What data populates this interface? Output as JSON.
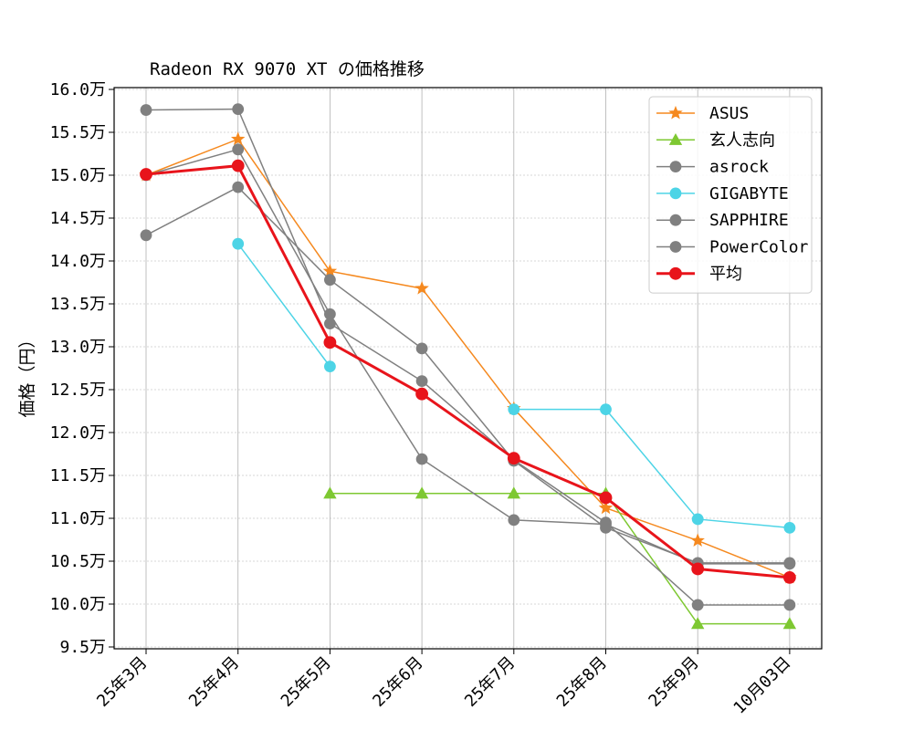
{
  "chart_data": {
    "type": "line",
    "title": "Radeon RX 9070 XT の価格推移",
    "ylabel": "価格（円）",
    "xlabel": "",
    "categories": [
      "25年3月",
      "25年4月",
      "25年5月",
      "25年6月",
      "25年7月",
      "25年8月",
      "25年9月",
      "10月03日"
    ],
    "ylim": [
      9.5,
      16.0
    ],
    "y_unit": "万",
    "y_ticks": [
      "9.5万",
      "10.0万",
      "10.5万",
      "11.0万",
      "11.5万",
      "12.0万",
      "12.5万",
      "13.0万",
      "13.5万",
      "14.0万",
      "14.5万",
      "15.0万",
      "15.5万",
      "16.0万"
    ],
    "grid": true,
    "legend_position": "top-right",
    "series": [
      {
        "name": "ASUS",
        "color": "#f5891f",
        "marker": "star",
        "width": 1.5,
        "values": [
          15.0,
          15.42,
          13.88,
          13.68,
          12.28,
          11.12,
          10.74,
          10.31
        ]
      },
      {
        "name": "玄人志向",
        "color": "#7ec832",
        "marker": "triangle",
        "width": 1.5,
        "values": [
          null,
          null,
          11.29,
          11.29,
          11.29,
          11.29,
          9.77,
          9.77
        ]
      },
      {
        "name": "asrock",
        "color": "#808080",
        "marker": "circle",
        "width": 1.5,
        "values": [
          14.3,
          14.86,
          13.78,
          12.98,
          11.67,
          10.89,
          10.48,
          10.48
        ]
      },
      {
        "name": "GIGABYTE",
        "color": "#4dd4e6",
        "marker": "circle",
        "width": 1.5,
        "values": [
          null,
          14.2,
          12.77,
          null,
          12.27,
          12.27,
          10.99,
          10.89
        ]
      },
      {
        "name": "SAPPHIRE",
        "color": "#808080",
        "marker": "circle",
        "width": 1.5,
        "values": [
          15.76,
          15.77,
          13.27,
          12.6,
          11.68,
          10.95,
          9.99,
          9.99
        ]
      },
      {
        "name": "PowerColor",
        "color": "#808080",
        "marker": "circle",
        "width": 1.5,
        "values": [
          15.0,
          15.3,
          13.38,
          11.69,
          10.98,
          10.93,
          10.47,
          10.47
        ]
      },
      {
        "name": "平均",
        "color": "#e8141b",
        "marker": "circle",
        "width": 3,
        "values": [
          15.01,
          15.11,
          13.05,
          12.45,
          11.7,
          11.24,
          10.41,
          10.31
        ]
      }
    ]
  }
}
